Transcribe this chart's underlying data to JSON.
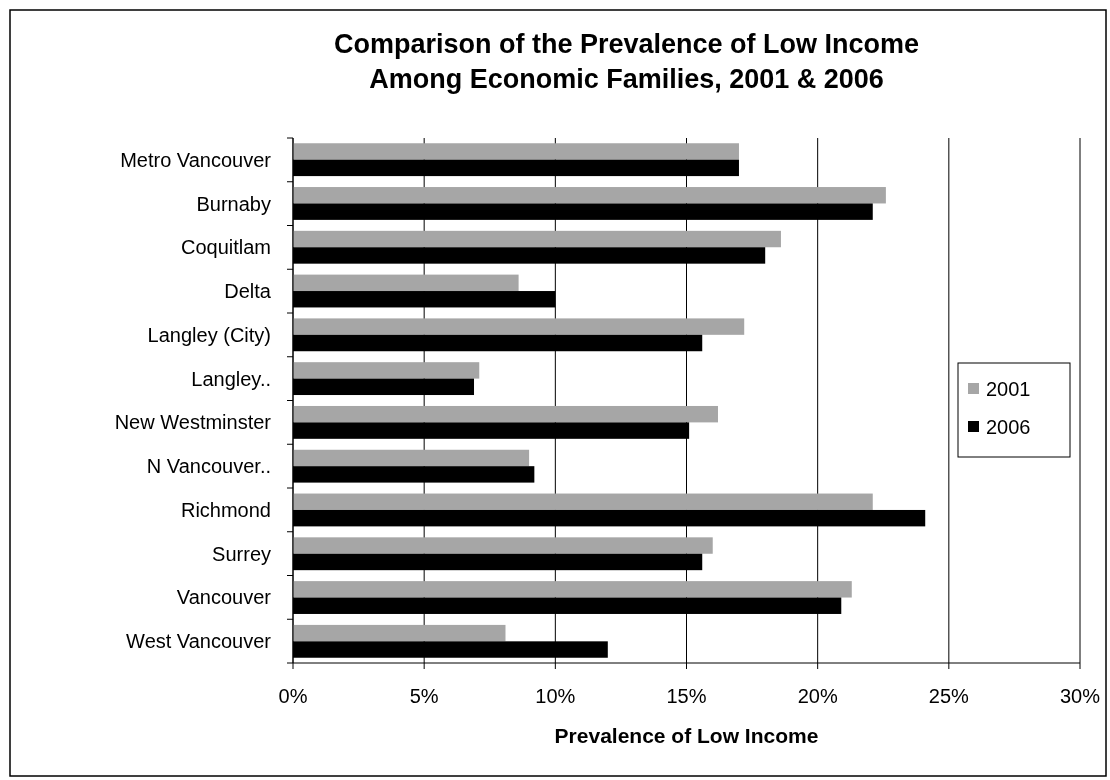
{
  "chart_data": {
    "type": "bar",
    "orientation": "horizontal",
    "title": "Comparison of the Prevalence of Low Income\nAmong Economic Families, 2001 & 2006",
    "xlabel": "Prevalence of Low Income",
    "categories": [
      "Metro Vancouver",
      "Burnaby",
      "Coquitlam",
      "Delta",
      "Langley (City)",
      "Langley..",
      "New Westminster",
      "N Vancouver..",
      "Richmond",
      "Surrey",
      "Vancouver",
      "West Vancouver"
    ],
    "series": [
      {
        "name": "2001",
        "color": "#a6a6a6",
        "values": [
          17.0,
          22.6,
          18.6,
          8.6,
          17.2,
          7.1,
          16.2,
          9.0,
          22.1,
          16.0,
          21.3,
          8.1
        ]
      },
      {
        "name": "2006",
        "color": "#000000",
        "values": [
          17.0,
          22.1,
          18.0,
          10.0,
          15.6,
          6.9,
          15.1,
          9.2,
          24.1,
          15.6,
          20.9,
          12.0
        ]
      }
    ],
    "xlim": [
      0,
      30
    ],
    "xticks": [
      {
        "value": 0,
        "label": "0%"
      },
      {
        "value": 5,
        "label": "5%"
      },
      {
        "value": 10,
        "label": "10%"
      },
      {
        "value": 15,
        "label": "15%"
      },
      {
        "value": 20,
        "label": "20%"
      },
      {
        "value": 25,
        "label": "25%"
      },
      {
        "value": 30,
        "label": "30%"
      }
    ],
    "grid": "x",
    "legend": "right"
  }
}
